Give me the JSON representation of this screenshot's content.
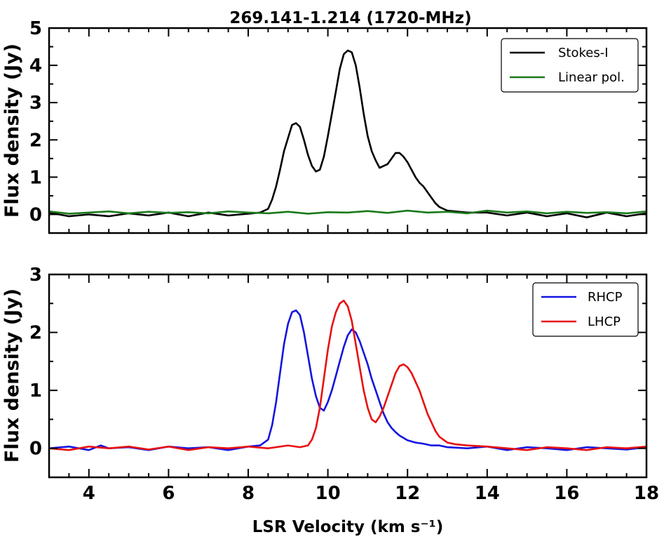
{
  "figure": {
    "title": "269.141-1.214 (1720-MHz)"
  },
  "chart_data": [
    {
      "type": "line",
      "title": "269.141-1.214 (1720-MHz)",
      "xlabel": "",
      "ylabel": "Flux density (Jy)",
      "xlim": [
        3,
        18
      ],
      "ylim": [
        -0.5,
        5
      ],
      "xticks": [
        4,
        6,
        8,
        10,
        12,
        14,
        16,
        18
      ],
      "yticks": [
        0,
        1,
        2,
        3,
        4,
        5
      ],
      "x_tick_labels_shown": false,
      "grid": false,
      "legend_position": "top-right",
      "series": [
        {
          "name": "Stokes-I",
          "color": "#000000",
          "x": [
            3.0,
            3.5,
            4.0,
            4.5,
            5.0,
            5.5,
            6.0,
            6.5,
            7.0,
            7.5,
            8.0,
            8.3,
            8.5,
            8.6,
            8.7,
            8.8,
            8.9,
            9.0,
            9.1,
            9.2,
            9.3,
            9.4,
            9.5,
            9.6,
            9.7,
            9.8,
            9.9,
            10.0,
            10.1,
            10.2,
            10.3,
            10.4,
            10.5,
            10.6,
            10.7,
            10.8,
            10.9,
            11.0,
            11.1,
            11.2,
            11.3,
            11.4,
            11.5,
            11.6,
            11.7,
            11.8,
            11.9,
            12.0,
            12.1,
            12.2,
            12.3,
            12.4,
            12.5,
            12.6,
            12.7,
            12.8,
            12.9,
            13.0,
            13.2,
            13.5,
            14.0,
            14.5,
            15.0,
            15.5,
            16.0,
            16.5,
            17.0,
            17.5,
            18.0
          ],
          "y": [
            0.05,
            -0.05,
            0.0,
            -0.05,
            0.03,
            -0.03,
            0.05,
            -0.05,
            0.05,
            -0.03,
            0.02,
            0.05,
            0.15,
            0.4,
            0.75,
            1.2,
            1.7,
            2.05,
            2.4,
            2.45,
            2.35,
            2.0,
            1.6,
            1.3,
            1.15,
            1.2,
            1.55,
            2.1,
            2.7,
            3.3,
            3.9,
            4.3,
            4.4,
            4.35,
            4.0,
            3.4,
            2.7,
            2.1,
            1.7,
            1.45,
            1.25,
            1.3,
            1.35,
            1.5,
            1.65,
            1.65,
            1.55,
            1.4,
            1.2,
            1.0,
            0.85,
            0.75,
            0.6,
            0.45,
            0.3,
            0.2,
            0.15,
            0.1,
            0.08,
            0.05,
            0.05,
            -0.03,
            0.05,
            -0.05,
            0.03,
            -0.08,
            0.05,
            -0.05,
            0.03
          ]
        },
        {
          "name": "Linear pol.",
          "color": "#1b7a1b",
          "x": [
            3.0,
            3.5,
            4.0,
            4.5,
            5.0,
            5.5,
            6.0,
            6.5,
            7.0,
            7.5,
            8.0,
            8.5,
            9.0,
            9.5,
            10.0,
            10.5,
            11.0,
            11.5,
            12.0,
            12.5,
            13.0,
            13.5,
            14.0,
            14.5,
            15.0,
            15.5,
            16.0,
            16.5,
            17.0,
            17.5,
            18.0
          ],
          "y": [
            0.08,
            0.02,
            0.05,
            0.08,
            0.03,
            0.07,
            0.04,
            0.06,
            0.03,
            0.08,
            0.05,
            0.03,
            0.07,
            0.02,
            0.06,
            0.05,
            0.09,
            0.04,
            0.1,
            0.05,
            0.07,
            0.03,
            0.1,
            0.05,
            0.08,
            0.03,
            0.07,
            0.04,
            0.06,
            0.03,
            0.08
          ]
        }
      ]
    },
    {
      "type": "line",
      "title": "",
      "xlabel": "LSR Velocity (km s⁻¹)",
      "ylabel": "Flux density (Jy)",
      "xlim": [
        3,
        18
      ],
      "ylim": [
        -0.5,
        3
      ],
      "xticks": [
        4,
        6,
        8,
        10,
        12,
        14,
        16,
        18
      ],
      "yticks": [
        0,
        1,
        2,
        3
      ],
      "x_tick_labels_shown": true,
      "grid": false,
      "legend_position": "top-right",
      "series": [
        {
          "name": "RHCP",
          "color": "#1414e0",
          "x": [
            3.0,
            3.5,
            4.0,
            4.3,
            4.5,
            5.0,
            5.5,
            6.0,
            6.5,
            7.0,
            7.5,
            8.0,
            8.3,
            8.5,
            8.6,
            8.7,
            8.8,
            8.9,
            9.0,
            9.1,
            9.2,
            9.3,
            9.4,
            9.5,
            9.6,
            9.7,
            9.8,
            9.9,
            10.0,
            10.1,
            10.2,
            10.3,
            10.4,
            10.5,
            10.6,
            10.7,
            10.8,
            10.9,
            11.0,
            11.1,
            11.2,
            11.3,
            11.4,
            11.5,
            11.6,
            11.7,
            11.8,
            11.9,
            12.0,
            12.2,
            12.4,
            12.6,
            12.8,
            13.0,
            13.5,
            14.0,
            14.5,
            15.0,
            15.5,
            16.0,
            16.5,
            17.0,
            17.5,
            18.0
          ],
          "y": [
            0.0,
            0.03,
            -0.03,
            0.05,
            0.0,
            0.02,
            -0.03,
            0.03,
            0.0,
            0.02,
            -0.03,
            0.03,
            0.05,
            0.15,
            0.4,
            0.8,
            1.3,
            1.8,
            2.15,
            2.35,
            2.38,
            2.3,
            2.0,
            1.6,
            1.2,
            0.9,
            0.7,
            0.65,
            0.8,
            1.0,
            1.25,
            1.5,
            1.75,
            1.95,
            2.05,
            2.0,
            1.85,
            1.65,
            1.45,
            1.2,
            1.0,
            0.8,
            0.6,
            0.45,
            0.35,
            0.28,
            0.22,
            0.18,
            0.14,
            0.1,
            0.08,
            0.05,
            0.05,
            0.02,
            0.0,
            0.03,
            -0.03,
            0.02,
            0.0,
            -0.03,
            0.02,
            0.0,
            -0.02,
            0.02
          ]
        },
        {
          "name": "LHCP",
          "color": "#e81010",
          "x": [
            3.0,
            3.5,
            4.0,
            4.5,
            5.0,
            5.5,
            6.0,
            6.5,
            7.0,
            7.5,
            8.0,
            8.5,
            9.0,
            9.3,
            9.5,
            9.6,
            9.7,
            9.8,
            9.9,
            10.0,
            10.1,
            10.2,
            10.3,
            10.4,
            10.5,
            10.6,
            10.7,
            10.8,
            10.9,
            11.0,
            11.1,
            11.2,
            11.3,
            11.4,
            11.5,
            11.6,
            11.7,
            11.8,
            11.9,
            12.0,
            12.1,
            12.2,
            12.3,
            12.4,
            12.5,
            12.6,
            12.7,
            12.8,
            12.9,
            13.0,
            13.2,
            13.5,
            14.0,
            14.5,
            15.0,
            15.5,
            16.0,
            16.5,
            17.0,
            17.5,
            18.0
          ],
          "y": [
            0.0,
            -0.03,
            0.03,
            0.0,
            0.03,
            -0.02,
            0.03,
            -0.03,
            0.02,
            0.0,
            0.03,
            0.0,
            0.05,
            0.02,
            0.05,
            0.15,
            0.35,
            0.7,
            1.2,
            1.7,
            2.1,
            2.35,
            2.5,
            2.55,
            2.45,
            2.2,
            1.8,
            1.4,
            1.0,
            0.7,
            0.5,
            0.45,
            0.55,
            0.7,
            0.9,
            1.1,
            1.3,
            1.42,
            1.45,
            1.4,
            1.3,
            1.15,
            1.0,
            0.8,
            0.6,
            0.45,
            0.3,
            0.2,
            0.15,
            0.1,
            0.07,
            0.05,
            0.03,
            0.0,
            -0.03,
            0.02,
            0.0,
            -0.03,
            0.02,
            0.0,
            0.03
          ]
        }
      ]
    }
  ]
}
